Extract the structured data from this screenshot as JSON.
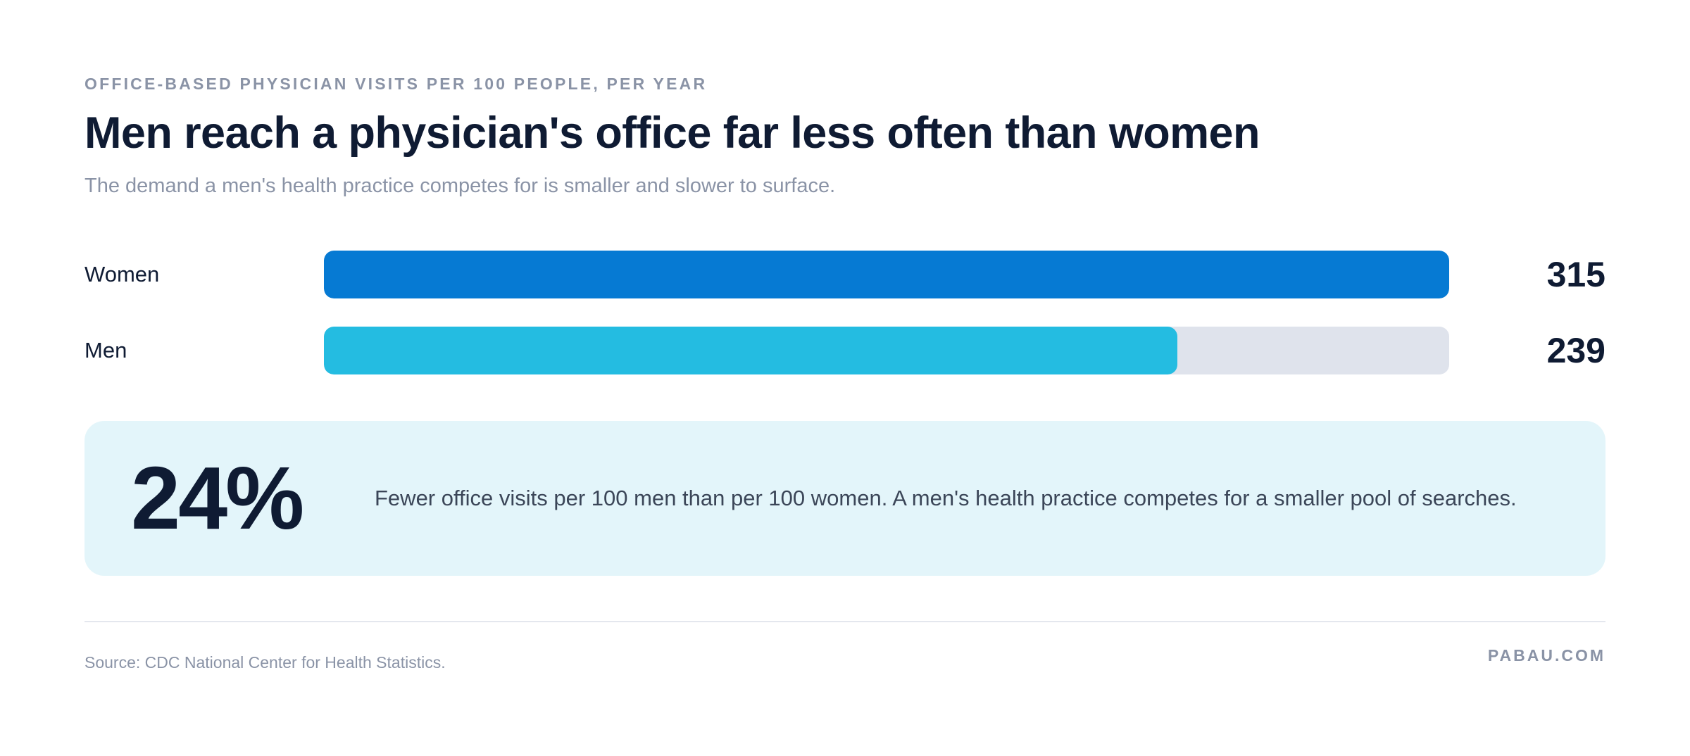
{
  "header": {
    "eyebrow": "OFFICE-BASED PHYSICIAN VISITS PER 100 PEOPLE, PER YEAR",
    "title": "Men reach a physician's office far less often than women",
    "subtitle": "The demand a men's health practice competes for is smaller and slower to surface."
  },
  "chart_data": {
    "type": "bar",
    "orientation": "horizontal",
    "categories": [
      "Women",
      "Men"
    ],
    "values": [
      315,
      239
    ],
    "value_labels": [
      "315",
      "239"
    ],
    "xlim": [
      0,
      315
    ],
    "colors": [
      "#067ad3",
      "#24bce1"
    ],
    "track_color": "#dfe3ec",
    "grid": false
  },
  "callout": {
    "stat": "24%",
    "text": "Fewer office visits per 100 men than per 100 women. A men's health practice competes for a smaller pool of searches."
  },
  "footer": {
    "source": "Source: CDC National Center for Health Statistics.",
    "brand": "PABAU.COM"
  },
  "colors": {
    "text_dark": "#0f1b33",
    "text_muted": "#8a93a6",
    "callout_bg": "#e3f5fa"
  }
}
